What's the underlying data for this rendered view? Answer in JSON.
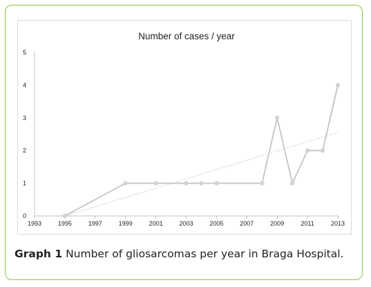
{
  "caption": {
    "label": "Graph 1",
    "text": "Number of gliosarcomas per year in Braga Hospital."
  },
  "colors": {
    "frame_border": "#8cc63f",
    "series_line": "#c8c8c8",
    "marker": "#d3d3d3",
    "trendline": "#c8c8c8",
    "axis": "#bfbfbf",
    "text": "#222222"
  },
  "chart_data": {
    "type": "line",
    "title": "Number of cases / year",
    "xlabel": "",
    "ylabel": "",
    "xlim": [
      1993,
      2013
    ],
    "ylim": [
      0,
      5
    ],
    "x_ticks": [
      1993,
      1995,
      1997,
      1999,
      2001,
      2003,
      2005,
      2007,
      2009,
      2011,
      2013
    ],
    "y_ticks": [
      0,
      1,
      2,
      3,
      4,
      5
    ],
    "grid": false,
    "legend": "none",
    "series": [
      {
        "x": [
          1995,
          1999,
          2001,
          2003,
          2004,
          2005,
          2008,
          2009,
          2010,
          2011,
          2012,
          2013
        ],
        "y": [
          0,
          1,
          1,
          1,
          1,
          1,
          1,
          3,
          1,
          2,
          2,
          4
        ]
      }
    ],
    "trendline": {
      "type": "linear",
      "style": "dotted",
      "x": [
        1995,
        2013
      ],
      "y": [
        0,
        2.55
      ]
    }
  }
}
